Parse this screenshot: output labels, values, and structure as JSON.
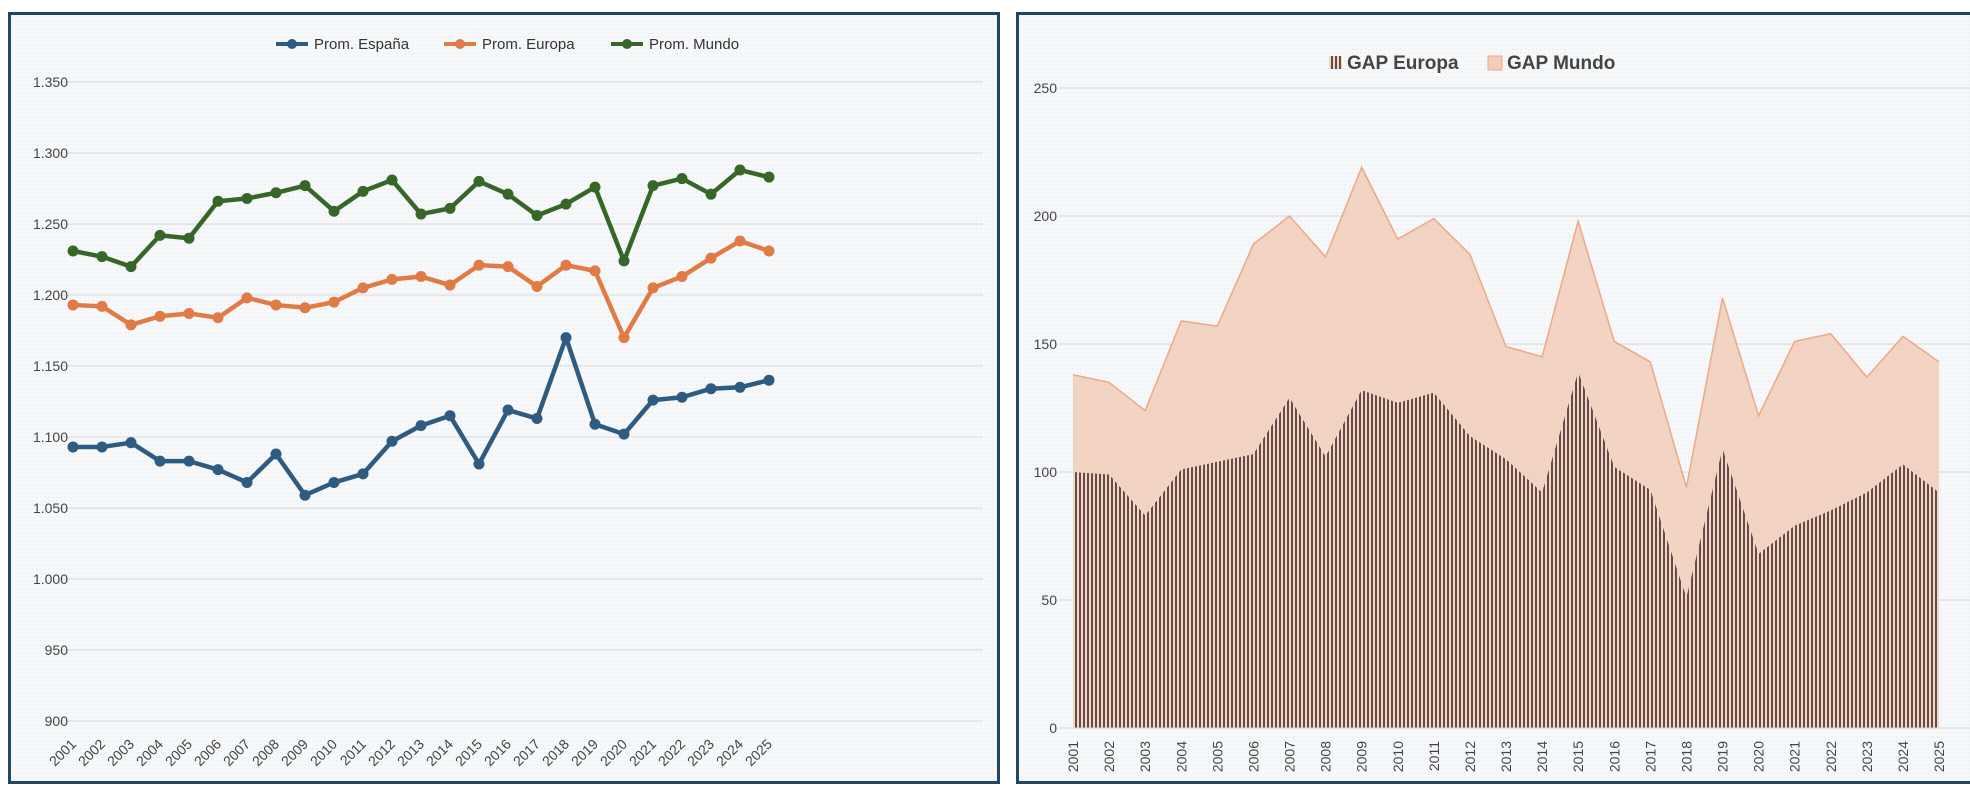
{
  "chart_data": [
    {
      "type": "line",
      "categories": [
        "2001",
        "2002",
        "2003",
        "2004",
        "2005",
        "2006",
        "2007",
        "2008",
        "2009",
        "2010",
        "2011",
        "2012",
        "2013",
        "2014",
        "2015",
        "2016",
        "2017",
        "2018",
        "2019",
        "2020",
        "2021",
        "2022",
        "2023",
        "2024",
        "2025"
      ],
      "series": [
        {
          "name": "Prom. España",
          "color": "#2e5b7f",
          "values": [
            1093,
            1093,
            1096,
            1083,
            1083,
            1077,
            1068,
            1088,
            1059,
            1068,
            1074,
            1097,
            1108,
            1115,
            1081,
            1119,
            1113,
            1170,
            1109,
            1102,
            1126,
            1128,
            1134,
            1135,
            1140
          ]
        },
        {
          "name": "Prom. Europa",
          "color": "#e07b45",
          "values": [
            1193,
            1192,
            1179,
            1185,
            1187,
            1184,
            1198,
            1193,
            1191,
            1195,
            1205,
            1211,
            1213,
            1207,
            1221,
            1220,
            1206,
            1221,
            1217,
            1170,
            1205,
            1213,
            1226,
            1238,
            1231
          ]
        },
        {
          "name": "Prom. Mundo",
          "color": "#376629",
          "values": [
            1231,
            1227,
            1220,
            1242,
            1240,
            1266,
            1268,
            1272,
            1277,
            1259,
            1273,
            1281,
            1257,
            1261,
            1280,
            1271,
            1256,
            1264,
            1276,
            1224,
            1277,
            1282,
            1271,
            1288,
            1283
          ]
        }
      ],
      "ylim": [
        900,
        1350
      ],
      "yticks": [
        "900",
        "950",
        "1.000",
        "1.050",
        "1.100",
        "1.150",
        "1.200",
        "1.250",
        "1.300",
        "1.350"
      ],
      "yticks_values": [
        900,
        950,
        1000,
        1050,
        1100,
        1150,
        1200,
        1250,
        1300,
        1350
      ],
      "legend_position": "top",
      "grid": true
    },
    {
      "type": "area",
      "categories": [
        "2001",
        "2002",
        "2003",
        "2004",
        "2005",
        "2006",
        "2007",
        "2008",
        "2009",
        "2010",
        "2011",
        "2012",
        "2013",
        "2014",
        "2015",
        "2016",
        "2017",
        "2018",
        "2019",
        "2020",
        "2021",
        "2022",
        "2023",
        "2024",
        "2025"
      ],
      "series": [
        {
          "name": "GAP Europa",
          "color": "#6e4a3e",
          "pattern": "vertical-lines",
          "values": [
            100,
            99,
            83,
            101,
            104,
            107,
            129,
            106,
            132,
            127,
            131,
            114,
            105,
            92,
            139,
            102,
            93,
            51,
            109,
            68,
            79,
            85,
            92,
            103,
            92
          ]
        },
        {
          "name": "GAP Mundo",
          "color": "#f2cdb7",
          "edge": "#eaa98a",
          "values": [
            138,
            135,
            124,
            159,
            157,
            189,
            200,
            184,
            219,
            191,
            199,
            185,
            149,
            145,
            198,
            151,
            143,
            94,
            168,
            122,
            151,
            154,
            137,
            153,
            143
          ]
        }
      ],
      "ylim": [
        0,
        250
      ],
      "yticks": [
        "0",
        "50",
        "100",
        "150",
        "200",
        "250"
      ],
      "yticks_values": [
        0,
        50,
        100,
        150,
        200,
        250
      ],
      "legend_position": "top",
      "grid": true
    }
  ]
}
